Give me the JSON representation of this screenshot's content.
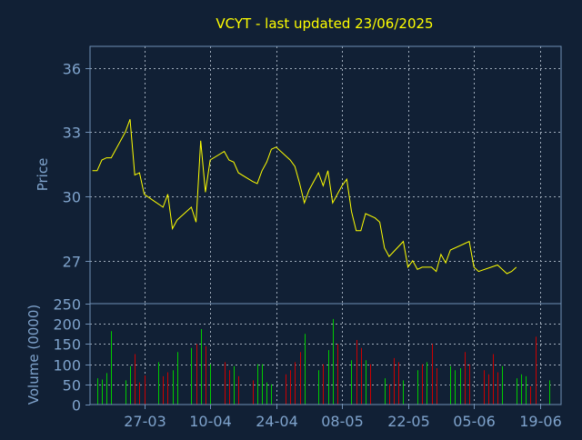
{
  "title": "VCYT - last updated 23/06/2025",
  "colors": {
    "background": "#112035",
    "axis": "#6f8fb5",
    "tick_label": "#7fa3cc",
    "grid": "#a0acbb",
    "title": "#ffff00",
    "price_line": "#ffff00",
    "volume_up": "#00cc00",
    "volume_down": "#cc0000"
  },
  "chart_data": [
    {
      "type": "line",
      "name": "price-panel",
      "title": "VCYT - last updated 23/06/2025",
      "ylabel": "Price",
      "ylim": [
        25.0,
        37.0
      ],
      "yticks": [
        27,
        30,
        33,
        36
      ],
      "grid": true,
      "x_index_range": [
        0,
        72
      ],
      "points": [
        [
          0,
          31.2
        ],
        [
          1,
          31.2
        ],
        [
          2,
          31.7
        ],
        [
          3,
          31.8
        ],
        [
          4,
          31.8
        ],
        [
          7,
          33.0
        ],
        [
          8,
          33.6
        ],
        [
          9,
          31.0
        ],
        [
          10,
          31.1
        ],
        [
          11,
          30.1
        ],
        [
          13,
          29.8
        ],
        [
          15,
          29.5
        ],
        [
          16,
          30.1
        ],
        [
          17,
          28.5
        ],
        [
          18,
          28.9
        ],
        [
          21,
          29.5
        ],
        [
          22,
          28.8
        ],
        [
          23,
          32.6
        ],
        [
          24,
          30.2
        ],
        [
          25,
          31.7
        ],
        [
          28,
          32.1
        ],
        [
          29,
          31.7
        ],
        [
          30,
          31.6
        ],
        [
          31,
          31.1
        ],
        [
          34,
          30.7
        ],
        [
          35,
          30.6
        ],
        [
          36,
          31.2
        ],
        [
          37,
          31.6
        ],
        [
          38,
          32.2
        ],
        [
          39,
          32.3
        ],
        [
          42,
          31.7
        ],
        [
          43,
          31.4
        ],
        [
          44,
          30.6
        ],
        [
          45,
          29.7
        ],
        [
          46,
          30.3
        ],
        [
          48,
          31.1
        ],
        [
          49,
          30.5
        ],
        [
          50,
          31.2
        ],
        [
          51,
          29.7
        ],
        [
          53,
          30.5
        ],
        [
          54,
          30.8
        ],
        [
          55,
          29.3
        ],
        [
          56,
          28.4
        ],
        [
          57,
          28.4
        ],
        [
          58,
          29.2
        ],
        [
          60,
          29.0
        ],
        [
          61,
          28.8
        ],
        [
          62,
          27.6
        ],
        [
          63,
          27.2
        ],
        [
          66,
          27.9
        ],
        [
          67,
          26.7
        ],
        [
          68,
          27.0
        ],
        [
          69,
          26.6
        ],
        [
          70,
          26.7
        ],
        [
          72,
          26.7
        ],
        [
          73,
          26.5
        ],
        [
          74,
          27.3
        ],
        [
          75,
          26.9
        ],
        [
          76,
          27.5
        ],
        [
          79,
          27.8
        ],
        [
          80,
          27.9
        ],
        [
          81,
          26.7
        ],
        [
          82,
          26.5
        ],
        [
          86,
          26.8
        ],
        [
          87,
          26.6
        ],
        [
          88,
          26.4
        ],
        [
          89,
          26.5
        ],
        [
          90,
          26.7
        ]
      ]
    },
    {
      "type": "bar",
      "name": "volume-panel",
      "ylabel": "Volume (0000)",
      "ylim": [
        0,
        250
      ],
      "yticks": [
        0,
        50,
        100,
        150,
        200,
        250
      ],
      "grid": true,
      "bars": [
        {
          "i": 1,
          "v": 65,
          "dir": "up"
        },
        {
          "i": 2,
          "v": 62,
          "dir": "up"
        },
        {
          "i": 3,
          "v": 78,
          "dir": "up"
        },
        {
          "i": 4,
          "v": 182,
          "dir": "up"
        },
        {
          "i": 7,
          "v": 60,
          "dir": "up"
        },
        {
          "i": 8,
          "v": 95,
          "dir": "up"
        },
        {
          "i": 9,
          "v": 125,
          "dir": "down"
        },
        {
          "i": 10,
          "v": 55,
          "dir": "down"
        },
        {
          "i": 11,
          "v": 72,
          "dir": "down"
        },
        {
          "i": 14,
          "v": 105,
          "dir": "up"
        },
        {
          "i": 15,
          "v": 70,
          "dir": "down"
        },
        {
          "i": 16,
          "v": 80,
          "dir": "down"
        },
        {
          "i": 17,
          "v": 85,
          "dir": "up"
        },
        {
          "i": 18,
          "v": 130,
          "dir": "up"
        },
        {
          "i": 21,
          "v": 140,
          "dir": "up"
        },
        {
          "i": 22,
          "v": 150,
          "dir": "down"
        },
        {
          "i": 23,
          "v": 187,
          "dir": "up"
        },
        {
          "i": 24,
          "v": 145,
          "dir": "down"
        },
        {
          "i": 25,
          "v": 100,
          "dir": "up"
        },
        {
          "i": 28,
          "v": 105,
          "dir": "down"
        },
        {
          "i": 29,
          "v": 85,
          "dir": "down"
        },
        {
          "i": 30,
          "v": 95,
          "dir": "up"
        },
        {
          "i": 31,
          "v": 70,
          "dir": "down"
        },
        {
          "i": 34,
          "v": 60,
          "dir": "down"
        },
        {
          "i": 35,
          "v": 100,
          "dir": "up"
        },
        {
          "i": 36,
          "v": 100,
          "dir": "up"
        },
        {
          "i": 37,
          "v": 55,
          "dir": "up"
        },
        {
          "i": 38,
          "v": 50,
          "dir": "up"
        },
        {
          "i": 41,
          "v": 75,
          "dir": "down"
        },
        {
          "i": 42,
          "v": 85,
          "dir": "down"
        },
        {
          "i": 43,
          "v": 105,
          "dir": "down"
        },
        {
          "i": 44,
          "v": 130,
          "dir": "down"
        },
        {
          "i": 45,
          "v": 175,
          "dir": "up"
        },
        {
          "i": 48,
          "v": 85,
          "dir": "up"
        },
        {
          "i": 49,
          "v": 100,
          "dir": "down"
        },
        {
          "i": 50,
          "v": 135,
          "dir": "up"
        },
        {
          "i": 51,
          "v": 212,
          "dir": "up"
        },
        {
          "i": 52,
          "v": 150,
          "dir": "down"
        },
        {
          "i": 55,
          "v": 110,
          "dir": "up"
        },
        {
          "i": 56,
          "v": 160,
          "dir": "down"
        },
        {
          "i": 57,
          "v": 140,
          "dir": "down"
        },
        {
          "i": 58,
          "v": 110,
          "dir": "up"
        },
        {
          "i": 59,
          "v": 100,
          "dir": "down"
        },
        {
          "i": 62,
          "v": 65,
          "dir": "up"
        },
        {
          "i": 63,
          "v": 50,
          "dir": "down"
        },
        {
          "i": 64,
          "v": 115,
          "dir": "down"
        },
        {
          "i": 65,
          "v": 105,
          "dir": "down"
        },
        {
          "i": 66,
          "v": 60,
          "dir": "up"
        },
        {
          "i": 69,
          "v": 85,
          "dir": "up"
        },
        {
          "i": 70,
          "v": 100,
          "dir": "down"
        },
        {
          "i": 71,
          "v": 105,
          "dir": "up"
        },
        {
          "i": 72,
          "v": 150,
          "dir": "down"
        },
        {
          "i": 73,
          "v": 90,
          "dir": "down"
        },
        {
          "i": 76,
          "v": 95,
          "dir": "up"
        },
        {
          "i": 77,
          "v": 85,
          "dir": "up"
        },
        {
          "i": 78,
          "v": 90,
          "dir": "up"
        },
        {
          "i": 79,
          "v": 130,
          "dir": "down"
        },
        {
          "i": 80,
          "v": 100,
          "dir": "down"
        },
        {
          "i": 83,
          "v": 85,
          "dir": "down"
        },
        {
          "i": 84,
          "v": 75,
          "dir": "down"
        },
        {
          "i": 85,
          "v": 125,
          "dir": "down"
        },
        {
          "i": 86,
          "v": 80,
          "dir": "down"
        },
        {
          "i": 87,
          "v": 95,
          "dir": "up"
        },
        {
          "i": 90,
          "v": 65,
          "dir": "up"
        },
        {
          "i": 91,
          "v": 75,
          "dir": "up"
        },
        {
          "i": 92,
          "v": 70,
          "dir": "up"
        },
        {
          "i": 93,
          "v": 45,
          "dir": "down"
        },
        {
          "i": 94,
          "v": 168,
          "dir": "down"
        },
        {
          "i": 97,
          "v": 60,
          "dir": "up"
        }
      ]
    }
  ],
  "x_axis": {
    "labels": [
      {
        "i": 11,
        "text": "27-03"
      },
      {
        "i": 25,
        "text": "10-04"
      },
      {
        "i": 39,
        "text": "24-04"
      },
      {
        "i": 53,
        "text": "08-05"
      },
      {
        "i": 67,
        "text": "22-05"
      },
      {
        "i": 81,
        "text": "05-06"
      },
      {
        "i": 95,
        "text": "19-06"
      }
    ],
    "index_max": 99
  }
}
